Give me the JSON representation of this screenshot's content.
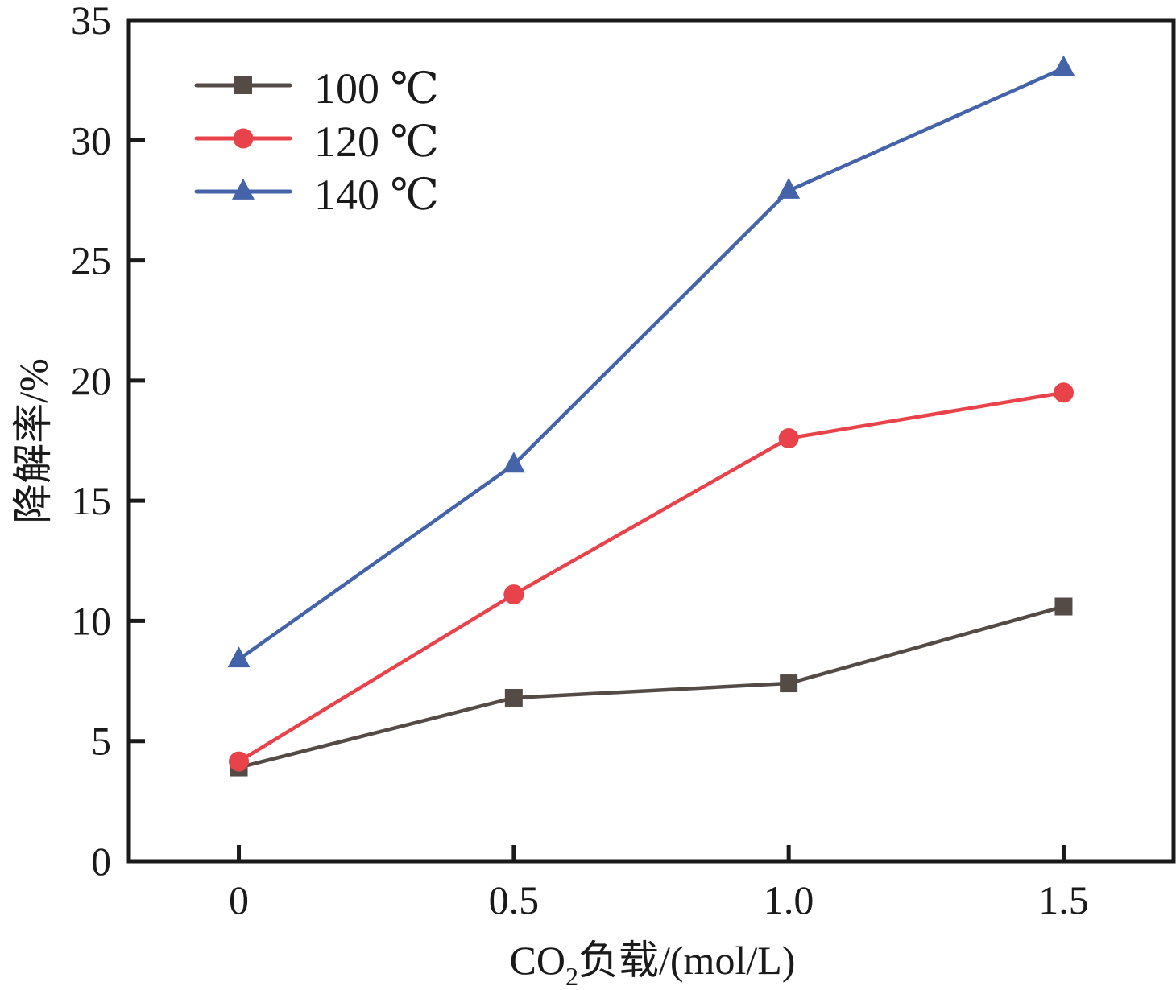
{
  "chart_data": {
    "type": "line",
    "title": "",
    "xlabel": "CO₂负载/(mol/L)",
    "xlabel_parts": {
      "prefix": "CO",
      "subscript": "2",
      "suffix": "负载/(mol/L)"
    },
    "ylabel": "降解率/%",
    "x": [
      0,
      0.5,
      1.0,
      1.5
    ],
    "x_tick_labels": [
      "0",
      "0.5",
      "1.0",
      "1.5"
    ],
    "y_ticks": [
      0,
      5,
      10,
      15,
      20,
      25,
      30,
      35
    ],
    "y_tick_labels": [
      "0",
      "5",
      "10",
      "15",
      "20",
      "25",
      "30",
      "35"
    ],
    "xlim": [
      -0.2,
      1.7
    ],
    "ylim": [
      0,
      35
    ],
    "grid": false,
    "legend_position": "top-left",
    "series": [
      {
        "name": "100 ℃",
        "color": "#544b47",
        "marker": "square",
        "values": [
          3.9,
          6.8,
          7.4,
          10.6
        ]
      },
      {
        "name": "120 ℃",
        "color": "#e8434a",
        "marker": "circle",
        "values": [
          4.15,
          11.1,
          17.6,
          19.5
        ]
      },
      {
        "name": "140 ℃",
        "color": "#4463a8",
        "marker": "triangle",
        "values": [
          8.4,
          16.5,
          27.9,
          33.0
        ]
      }
    ]
  }
}
